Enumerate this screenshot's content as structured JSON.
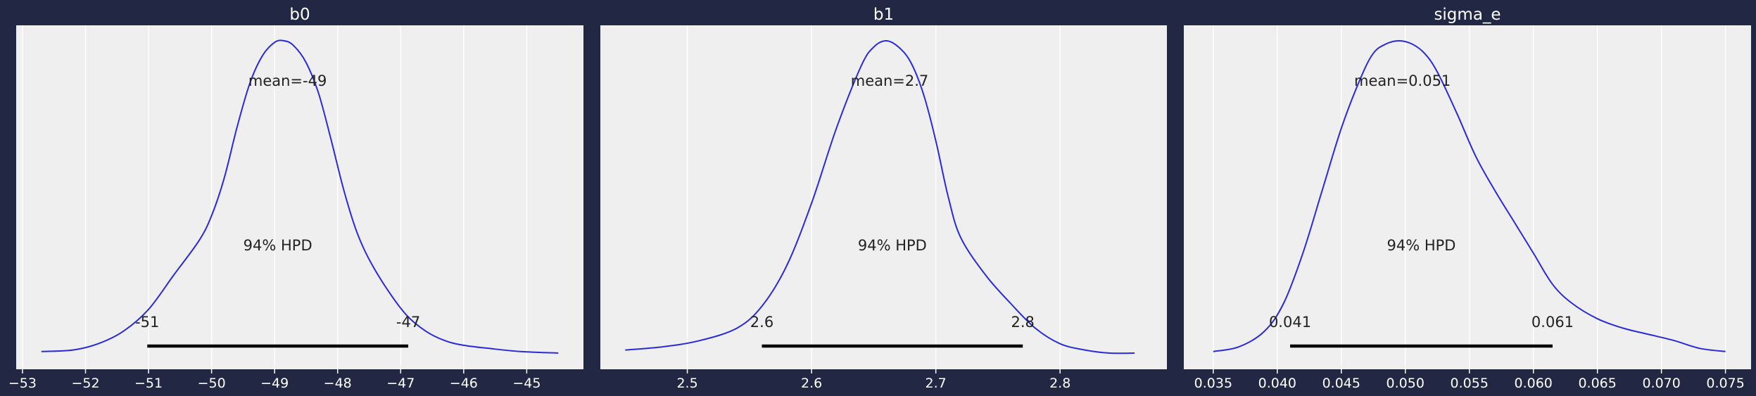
{
  "chart_data": [
    {
      "type": "line",
      "title": "b0",
      "xlim": [
        -53.1,
        -44.1
      ],
      "xticks": [
        -53,
        -52,
        -51,
        -50,
        -49,
        -48,
        -47,
        -46,
        -45
      ],
      "xticklabels": [
        "−53",
        "−52",
        "−51",
        "−50",
        "−49",
        "−48",
        "−47",
        "−46",
        "−45"
      ],
      "mean_label": "mean=-49",
      "hpd_label": "94% HPD",
      "hpd_low_label": "-51",
      "hpd_high_label": "-47",
      "hpd": [
        -51.02,
        -46.88
      ],
      "density_x": [
        -52.7,
        -52.2,
        -51.8,
        -51.4,
        -51.0,
        -50.6,
        -50.2,
        -50.0,
        -49.8,
        -49.6,
        -49.4,
        -49.2,
        -49.0,
        -48.85,
        -48.7,
        -48.5,
        -48.3,
        -48.1,
        -47.9,
        -47.7,
        -47.5,
        -47.2,
        -46.9,
        -46.6,
        -46.3,
        -46.0,
        -45.6,
        -45.1,
        -44.5
      ],
      "density_y": [
        0.005,
        0.01,
        0.03,
        0.07,
        0.14,
        0.25,
        0.36,
        0.44,
        0.56,
        0.72,
        0.86,
        0.95,
        0.995,
        1.0,
        0.985,
        0.93,
        0.83,
        0.68,
        0.52,
        0.39,
        0.3,
        0.2,
        0.12,
        0.07,
        0.04,
        0.025,
        0.015,
        0.005,
        0.0
      ]
    },
    {
      "type": "line",
      "title": "b1",
      "xlim": [
        2.43,
        2.886
      ],
      "xticks": [
        2.5,
        2.6,
        2.7,
        2.8
      ],
      "xticklabels": [
        "2.5",
        "2.6",
        "2.7",
        "2.8"
      ],
      "mean_label": "mean=2.7",
      "hpd_label": "94% HPD",
      "hpd_low_label": "2.6",
      "hpd_high_label": "2.8",
      "hpd": [
        2.56,
        2.77
      ],
      "density_x": [
        2.45,
        2.48,
        2.51,
        2.54,
        2.56,
        2.58,
        2.6,
        2.62,
        2.64,
        2.65,
        2.66,
        2.67,
        2.68,
        2.69,
        2.7,
        2.71,
        2.72,
        2.74,
        2.76,
        2.78,
        2.8,
        2.82,
        2.84,
        2.86
      ],
      "density_y": [
        0.01,
        0.02,
        0.04,
        0.08,
        0.15,
        0.28,
        0.48,
        0.72,
        0.92,
        0.98,
        1.0,
        0.98,
        0.93,
        0.83,
        0.68,
        0.5,
        0.37,
        0.25,
        0.16,
        0.08,
        0.03,
        0.01,
        0.0,
        0.0
      ]
    },
    {
      "type": "line",
      "title": "sigma_e",
      "xlim": [
        0.0327,
        0.077
      ],
      "xticks": [
        0.035,
        0.04,
        0.045,
        0.05,
        0.055,
        0.06,
        0.065,
        0.07,
        0.075
      ],
      "xticklabels": [
        "0.035",
        "0.040",
        "0.045",
        "0.050",
        "0.055",
        "0.060",
        "0.065",
        "0.070",
        "0.075"
      ],
      "mean_label": "mean=0.051",
      "hpd_label": "94% HPD",
      "hpd_low_label": "0.041",
      "hpd_high_label": "0.061",
      "hpd": [
        0.041,
        0.0615
      ],
      "density_x": [
        0.035,
        0.037,
        0.039,
        0.0405,
        0.042,
        0.0435,
        0.045,
        0.0465,
        0.0475,
        0.0485,
        0.0495,
        0.0505,
        0.0515,
        0.0525,
        0.054,
        0.0555,
        0.057,
        0.0585,
        0.06,
        0.0615,
        0.063,
        0.065,
        0.067,
        0.069,
        0.071,
        0.073,
        0.075
      ],
      "density_y": [
        0.005,
        0.02,
        0.07,
        0.16,
        0.32,
        0.52,
        0.72,
        0.88,
        0.96,
        0.99,
        1.0,
        0.99,
        0.96,
        0.9,
        0.77,
        0.63,
        0.52,
        0.42,
        0.32,
        0.22,
        0.16,
        0.11,
        0.08,
        0.06,
        0.04,
        0.015,
        0.005
      ]
    }
  ]
}
